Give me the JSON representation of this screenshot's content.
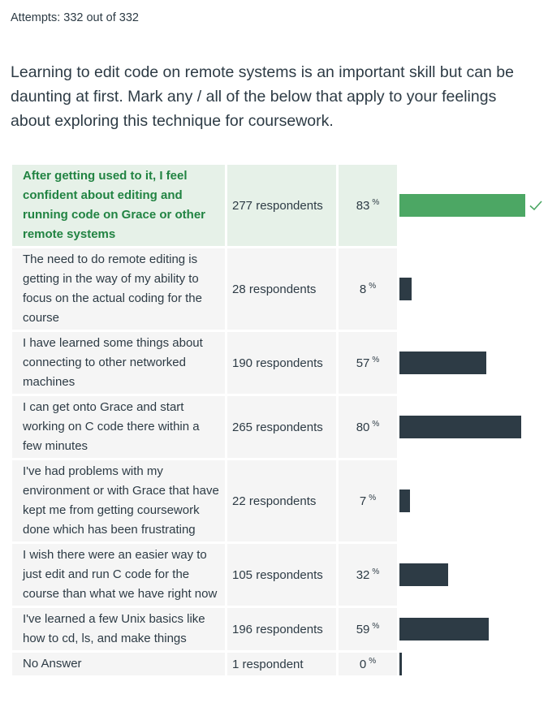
{
  "attempts": "Attempts: 332 out of 332",
  "question": "Learning to edit code on remote systems is an important skill but can be daunting at first.  Mark any / all of the below that apply to your feelings about exploring this technique for coursework.",
  "colors": {
    "correct": "#4ca764",
    "bar": "#2d3b45",
    "cell_bg": "#f5f5f5",
    "correct_bg": "#e6f1e8"
  },
  "answers": [
    {
      "text": "After getting used to it, I feel confident about editing and running code on Grace or other remote systems",
      "count": "277 respondents",
      "pct": "83",
      "pct_symbol": "%",
      "fraction": 0.83,
      "correct": true
    },
    {
      "text": "The need to do remote editing is getting in the way of my ability to focus on the actual coding for the course",
      "count": "28 respondents",
      "pct": "8",
      "pct_symbol": "%",
      "fraction": 0.08
    },
    {
      "text": "I have learned some things about connecting to other networked machines",
      "count": "190 respondents",
      "pct": "57",
      "pct_symbol": "%",
      "fraction": 0.57
    },
    {
      "text": "I can get onto Grace and start working on C code there within a few minutes",
      "count": "265 respondents",
      "pct": "80",
      "pct_symbol": "%",
      "fraction": 0.8
    },
    {
      "text": "I've had problems with my environment or with Grace that have kept me from getting coursework done which has been frustrating",
      "count": "22 respondents",
      "pct": "7",
      "pct_symbol": "%",
      "fraction": 0.07
    },
    {
      "text": "I wish there were an easier way to just edit and run C code for the course than what we have right now",
      "count": "105 respondents",
      "pct": "32",
      "pct_symbol": "%",
      "fraction": 0.32
    },
    {
      "text": "I've learned a few Unix basics like how to cd, ls, and make things",
      "count": "196 respondents",
      "pct": "59",
      "pct_symbol": "%",
      "fraction": 0.59
    },
    {
      "text": "No Answer",
      "count": "1 respondent",
      "pct": "0",
      "pct_symbol": "%",
      "fraction": 0.003
    }
  ]
}
